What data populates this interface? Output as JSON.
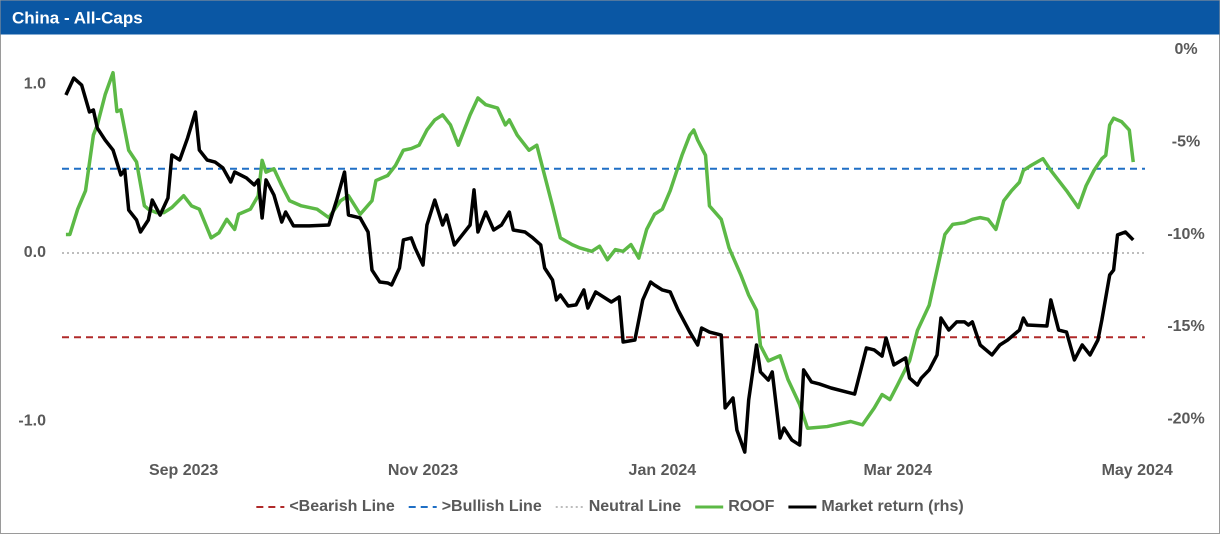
{
  "chart_data": {
    "type": "line",
    "title": "China - All-Caps",
    "xlim": [
      -31,
      245
    ],
    "xticks": [
      {
        "value": 0,
        "label": "Sep 2023"
      },
      {
        "value": 61,
        "label": "Nov 2023"
      },
      {
        "value": 122,
        "label": "Jan 2024"
      },
      {
        "value": 182,
        "label": "Mar 2024"
      },
      {
        "value": 243,
        "label": "May 2024"
      }
    ],
    "ylim": [
      -1.2,
      1.25
    ],
    "yticks": [
      {
        "value": 1,
        "label": "1.0"
      },
      {
        "value": 0,
        "label": "0.0"
      },
      {
        "value": -1,
        "label": "-1.0"
      }
    ],
    "y2lim": [
      -21.95,
      0.41
    ],
    "y2ticks": [
      {
        "value": 0,
        "label": "0%"
      },
      {
        "value": -5,
        "label": "-5%"
      },
      {
        "value": -10,
        "label": "-10%"
      },
      {
        "value": -15,
        "label": "-15%"
      },
      {
        "value": -20,
        "label": "-20%"
      }
    ],
    "grid": false,
    "legend": "bottom",
    "reference_lines": [
      {
        "name": "<Bearish Line",
        "value": -0.5,
        "color": "#b02a2a",
        "dash": "dashed"
      },
      {
        "name": ">Bullish Line",
        "value": 0.5,
        "color": "#1f6fc5",
        "dash": "dashed"
      },
      {
        "name": "Neutral Line",
        "value": 0,
        "color": "#bdbdbd",
        "dash": "dotted"
      }
    ],
    "series": [
      {
        "name": "ROOF",
        "color": "#5cb946",
        "x": [
          -30,
          -29,
          -27,
          -25,
          -23,
          -22,
          -20,
          -18,
          -17,
          -16,
          -14,
          -12,
          -10,
          -9,
          -7,
          -5,
          -3,
          0,
          2,
          4,
          7,
          9,
          11,
          13,
          14,
          17,
          19,
          20,
          21,
          23,
          25,
          27,
          30,
          34,
          37,
          40,
          42,
          45,
          48,
          49,
          52,
          54,
          56,
          58,
          60,
          62,
          64,
          66,
          68,
          70,
          72,
          73,
          75,
          77,
          80,
          82,
          83,
          85,
          88,
          90,
          92,
          94,
          96,
          99,
          101,
          104,
          106,
          108,
          110,
          112,
          114,
          116,
          118,
          120,
          122,
          124,
          127,
          129,
          130,
          131,
          133,
          134,
          137,
          139,
          142,
          144,
          146,
          147,
          149,
          152,
          154,
          157,
          159,
          164,
          170,
          173,
          176,
          178,
          180,
          182,
          185,
          187,
          190,
          192,
          194,
          196,
          199,
          201,
          203,
          205,
          207,
          209,
          211,
          213,
          214,
          216,
          219,
          221,
          223,
          225,
          228,
          230,
          232,
          234,
          235,
          236,
          237,
          239,
          241,
          242
        ],
        "values": [
          0.11,
          0.11,
          0.26,
          0.37,
          0.7,
          0.76,
          0.94,
          1.07,
          0.84,
          0.85,
          0.61,
          0.54,
          0.28,
          0.26,
          0.24,
          0.24,
          0.27,
          0.34,
          0.28,
          0.26,
          0.09,
          0.12,
          0.2,
          0.14,
          0.23,
          0.26,
          0.34,
          0.55,
          0.48,
          0.5,
          0.4,
          0.31,
          0.28,
          0.26,
          0.21,
          0.31,
          0.34,
          0.23,
          0.31,
          0.43,
          0.46,
          0.52,
          0.61,
          0.62,
          0.64,
          0.73,
          0.79,
          0.82,
          0.76,
          0.64,
          0.76,
          0.82,
          0.92,
          0.88,
          0.86,
          0.76,
          0.79,
          0.7,
          0.61,
          0.64,
          0.46,
          0.28,
          0.09,
          0.05,
          0.03,
          0.01,
          0.04,
          -0.04,
          0.02,
          0.01,
          0.05,
          -0.03,
          0.14,
          0.23,
          0.26,
          0.37,
          0.58,
          0.7,
          0.73,
          0.67,
          0.58,
          0.28,
          0.2,
          0.03,
          -0.13,
          -0.25,
          -0.34,
          -0.55,
          -0.64,
          -0.61,
          -0.75,
          -0.9,
          -1.04,
          -1.03,
          -1.0,
          -1.02,
          -0.92,
          -0.84,
          -0.87,
          -0.78,
          -0.64,
          -0.46,
          -0.31,
          -0.1,
          0.11,
          0.17,
          0.18,
          0.2,
          0.21,
          0.2,
          0.14,
          0.31,
          0.37,
          0.42,
          0.49,
          0.52,
          0.56,
          0.49,
          0.43,
          0.37,
          0.27,
          0.4,
          0.49,
          0.56,
          0.58,
          0.76,
          0.8,
          0.78,
          0.73,
          0.54
        ]
      },
      {
        "name": "Market return (rhs)",
        "color": "#000000",
        "axis": "y2",
        "x": [
          -30,
          -28,
          -26,
          -24,
          -23,
          -22,
          -20,
          -18,
          -16,
          -15,
          -14,
          -12,
          -11,
          -9,
          -8,
          -6,
          -4,
          -3,
          -1,
          1,
          3,
          4,
          6,
          8,
          10,
          12,
          13,
          16,
          18,
          19,
          20,
          21,
          23,
          25,
          26,
          28,
          32,
          37,
          39,
          41,
          42,
          45,
          47,
          48,
          50,
          52,
          53,
          55,
          56,
          58,
          59,
          61,
          62,
          64,
          66,
          67,
          69,
          71,
          73,
          74,
          75,
          77,
          79,
          81,
          83,
          84,
          87,
          89,
          91,
          92,
          94,
          95,
          96,
          98,
          100,
          102,
          103,
          105,
          107,
          109,
          111,
          112,
          115,
          117,
          119,
          120,
          122,
          124,
          126,
          129,
          131,
          132,
          134,
          137,
          138,
          140,
          141,
          143,
          144,
          146,
          147,
          149,
          150,
          152,
          153,
          155,
          157,
          158,
          160,
          162,
          165,
          169,
          171,
          174,
          176,
          178,
          179,
          181,
          184,
          185,
          187,
          188,
          190,
          192,
          193,
          195,
          197,
          199,
          200,
          201,
          203,
          206,
          208,
          210,
          213,
          214,
          215,
          220,
          221,
          223,
          225,
          227,
          229,
          231,
          233,
          234,
          236,
          237,
          238,
          240,
          242
        ],
        "values": [
          -2.44,
          -1.52,
          -1.9,
          -3.36,
          -3.25,
          -4.23,
          -4.88,
          -5.42,
          -6.77,
          -6.5,
          -8.67,
          -9.21,
          -9.86,
          -9.21,
          -8.13,
          -8.94,
          -8.02,
          -5.69,
          -5.96,
          -4.77,
          -3.36,
          -5.42,
          -5.96,
          -6.07,
          -6.39,
          -7.15,
          -6.61,
          -6.93,
          -7.31,
          -7.04,
          -9.1,
          -7.04,
          -7.85,
          -9.32,
          -8.78,
          -9.53,
          -9.53,
          -9.48,
          -8.13,
          -6.61,
          -8.94,
          -9.1,
          -9.86,
          -11.92,
          -12.57,
          -12.62,
          -12.73,
          -11.81,
          -10.29,
          -10.18,
          -10.73,
          -11.65,
          -9.48,
          -8.13,
          -9.48,
          -8.94,
          -10.56,
          -10.02,
          -9.48,
          -7.58,
          -9.86,
          -8.78,
          -9.75,
          -9.48,
          -8.78,
          -9.75,
          -9.86,
          -10.18,
          -10.56,
          -11.81,
          -12.46,
          -13.54,
          -13.27,
          -13.87,
          -13.81,
          -13.0,
          -13.98,
          -13.11,
          -13.38,
          -13.65,
          -13.38,
          -15.82,
          -15.71,
          -13.54,
          -12.57,
          -12.73,
          -13.0,
          -13.11,
          -14.08,
          -15.28,
          -15.98,
          -15.06,
          -15.28,
          -15.44,
          -19.39,
          -18.85,
          -20.59,
          -21.78,
          -18.96,
          -15.98,
          -17.44,
          -17.88,
          -17.44,
          -21.02,
          -20.48,
          -21.13,
          -21.4,
          -17.33,
          -17.98,
          -18.09,
          -18.31,
          -18.53,
          -18.64,
          -16.14,
          -16.25,
          -16.58,
          -15.6,
          -17.06,
          -16.68,
          -17.77,
          -18.15,
          -17.77,
          -17.33,
          -16.52,
          -14.52,
          -15.17,
          -14.73,
          -14.73,
          -14.9,
          -14.73,
          -15.98,
          -16.52,
          -15.98,
          -15.71,
          -15.17,
          -14.52,
          -14.9,
          -14.95,
          -13.54,
          -15.17,
          -15.28,
          -16.79,
          -15.98,
          -16.52,
          -15.71,
          -14.63,
          -12.19,
          -11.92,
          -10.02,
          -9.86,
          -10.29
        ]
      }
    ]
  }
}
